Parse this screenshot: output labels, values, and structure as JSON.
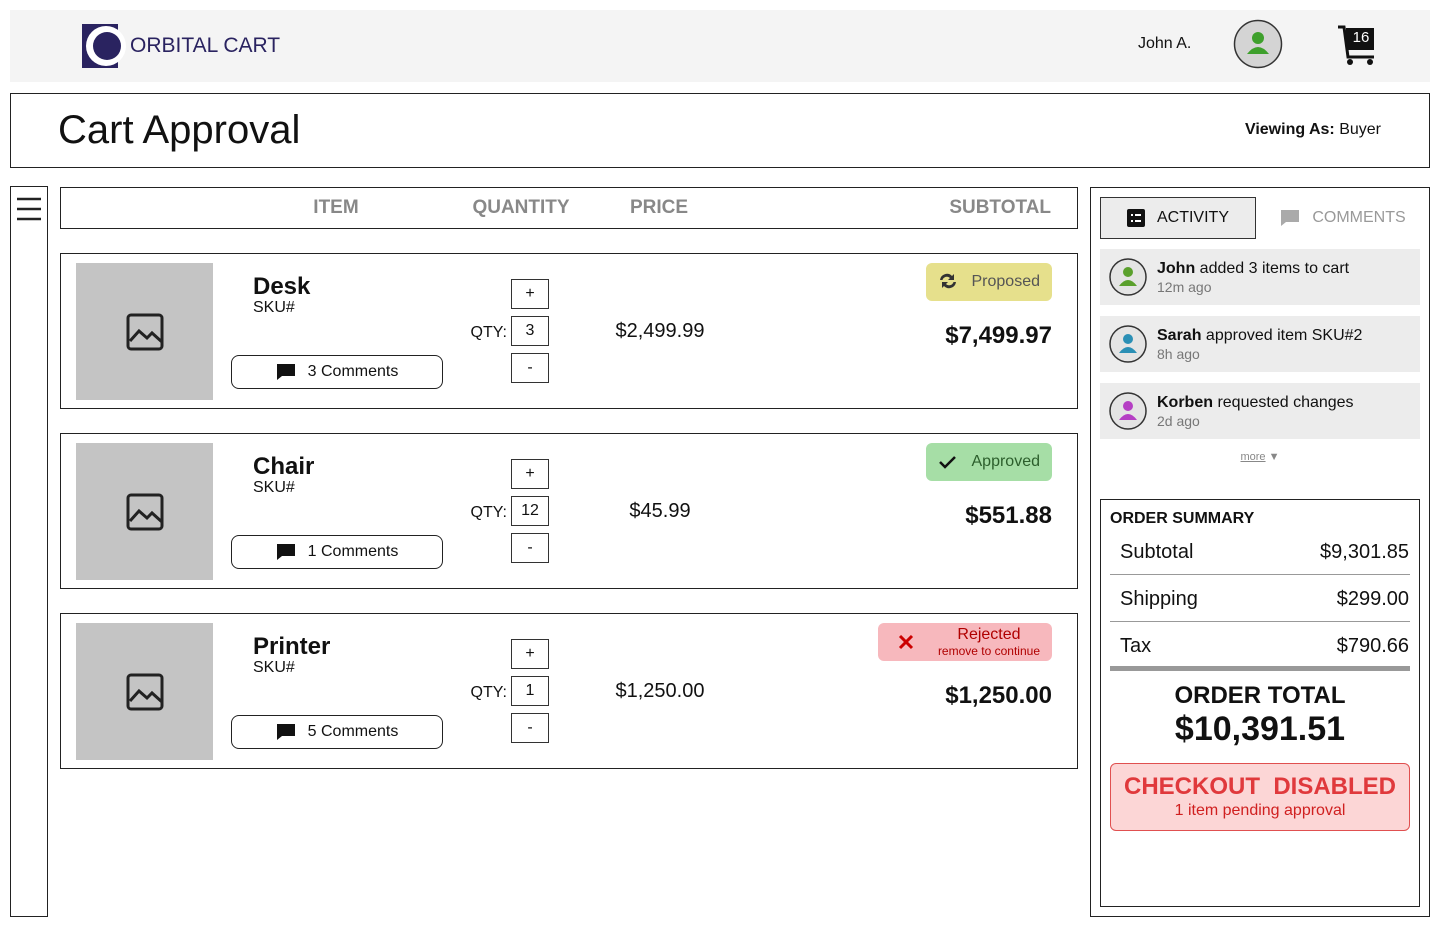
{
  "header": {
    "brand": "ORBITAL CART",
    "user": "John A.",
    "cart_count": 16
  },
  "page": {
    "title": "Cart Approval",
    "viewing_as_label": "Viewing As:",
    "viewing_as": "Buyer"
  },
  "table": {
    "columns": [
      "ITEM",
      "QUANTITY",
      "PRICE",
      "SUBTOTAL"
    ],
    "rows": [
      {
        "name": "Desk",
        "sku": "SKU#",
        "comments": "3 Comments",
        "plus": "+",
        "qty_label": "QTY:",
        "qty": 3,
        "minus": "-",
        "price": "$2,499.99",
        "status": "Proposed",
        "subtotal": "$7,499.97"
      },
      {
        "name": "Chair",
        "sku": "SKU#",
        "comments": "1 Comments",
        "plus": "+",
        "qty_label": "QTY:",
        "qty": 12,
        "minus": "-",
        "price": "$45.99",
        "status": "Approved",
        "subtotal": "$551.88"
      },
      {
        "name": "Printer",
        "sku": "SKU#",
        "comments": "5 Comments",
        "plus": "+",
        "qty_label": "QTY:",
        "qty": 1,
        "minus": "-",
        "price": "$1,250.00",
        "status": "Rejected",
        "status_note": "remove to continue",
        "subtotal": "$1,250.00"
      }
    ]
  },
  "tabs": [
    "ACTIVITY",
    "COMMENTS"
  ],
  "activity": [
    {
      "user": "John",
      "text": "added 3 items to cart",
      "time": "12m ago",
      "avatar_color": "#5aa02c"
    },
    {
      "user": "Sarah",
      "text": "approved item SKU#2",
      "time": "8h ago",
      "avatar_color": "#2a8fb5"
    },
    {
      "user": "Korben",
      "text": "requested changes",
      "time": "2d ago",
      "avatar_color": "#b53fc4"
    }
  ],
  "more": "more",
  "summary": {
    "title": "ORDER SUMMARY",
    "lines": [
      {
        "label": "Subtotal",
        "value": "$9,301.85"
      },
      {
        "label": "Shipping",
        "value": "$299.00"
      },
      {
        "label": "Tax",
        "value": "$790.66"
      }
    ],
    "total_label": "ORDER TOTAL",
    "total": "$10,391.51",
    "checkout": "CHECKOUT  DISABLED",
    "checkout_note": "1 item pending approval"
  }
}
